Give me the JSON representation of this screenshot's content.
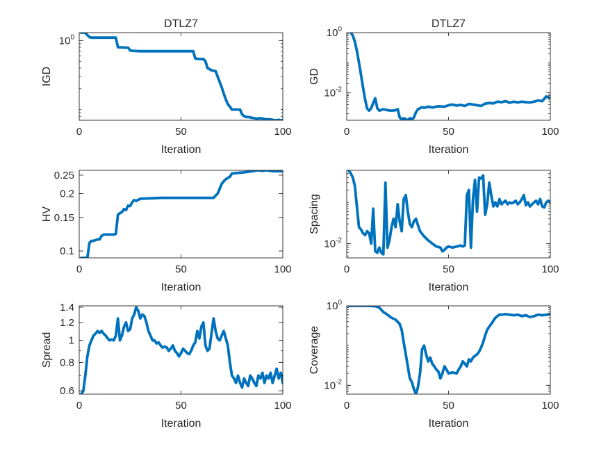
{
  "figure": {
    "line_color": "#0072bd",
    "axis_color": "#262626"
  },
  "chart_data": [
    {
      "id": "igd",
      "type": "line",
      "title": "DTLZ7",
      "xlabel": "Iteration",
      "ylabel": "IGD",
      "xlim": [
        0,
        100
      ],
      "ylim": [
        0.07,
        1.3
      ],
      "yscale": "log",
      "grid": false,
      "xticks": [
        {
          "value": 0,
          "label": "0"
        },
        {
          "value": 50,
          "label": "50"
        },
        {
          "value": 100,
          "label": "100"
        }
      ],
      "yticks": [
        {
          "value": 1,
          "base": "10",
          "exp": "0"
        }
      ],
      "series": [
        {
          "x": [
            1,
            3,
            4,
            5,
            6,
            18,
            19,
            23,
            24,
            25,
            26,
            30,
            40,
            50,
            56,
            57,
            59,
            61,
            62,
            63,
            65,
            67,
            68,
            69,
            70,
            71,
            72,
            73,
            74,
            75,
            76,
            77,
            78,
            79,
            80,
            81,
            82,
            83,
            84,
            85,
            86,
            87,
            88,
            89,
            90,
            91,
            92,
            93,
            94,
            95,
            96,
            97,
            98,
            99,
            100
          ],
          "y": [
            1.3,
            1.3,
            1.2,
            1.12,
            1.1,
            1.1,
            0.8,
            0.79,
            0.79,
            0.72,
            0.71,
            0.7,
            0.7,
            0.7,
            0.7,
            0.55,
            0.54,
            0.54,
            0.5,
            0.4,
            0.37,
            0.36,
            0.3,
            0.25,
            0.21,
            0.17,
            0.14,
            0.12,
            0.11,
            0.1,
            0.1,
            0.1,
            0.1,
            0.1,
            0.085,
            0.08,
            0.078,
            0.078,
            0.077,
            0.076,
            0.075,
            0.074,
            0.074,
            0.075,
            0.074,
            0.073,
            0.072,
            0.072,
            0.072,
            0.071,
            0.07,
            0.07,
            0.071,
            0.07,
            0.07
          ]
        }
      ]
    },
    {
      "id": "gd",
      "type": "line",
      "title": "DTLZ7",
      "xlabel": "Iteration",
      "ylabel": "GD",
      "xlim": [
        0,
        100
      ],
      "ylim": [
        0.0012,
        1.0
      ],
      "yscale": "log",
      "grid": false,
      "xticks": [
        {
          "value": 0,
          "label": "0"
        },
        {
          "value": 50,
          "label": "50"
        },
        {
          "value": 100,
          "label": "100"
        }
      ],
      "yticks": [
        {
          "value": 1,
          "base": "10",
          "exp": "0"
        },
        {
          "value": 0.01,
          "base": "10",
          "exp": "-2"
        }
      ],
      "series": [
        {
          "x": [
            2,
            3,
            4,
            5,
            6,
            7,
            8,
            9,
            10,
            11,
            12,
            13,
            14,
            15,
            16,
            18,
            20,
            22,
            24,
            25,
            26,
            27,
            28,
            29,
            30,
            31,
            32,
            33,
            34,
            35,
            36,
            37,
            38,
            40,
            42,
            45,
            48,
            50,
            52,
            54,
            56,
            58,
            60,
            62,
            64,
            66,
            68,
            70,
            72,
            74,
            76,
            78,
            80,
            82,
            84,
            86,
            88,
            90,
            92,
            94,
            96,
            98,
            100
          ],
          "y": [
            1.0,
            0.8,
            0.5,
            0.25,
            0.1,
            0.04,
            0.015,
            0.006,
            0.003,
            0.0025,
            0.003,
            0.0045,
            0.0065,
            0.003,
            0.0025,
            0.0028,
            0.0026,
            0.0025,
            0.0026,
            0.0028,
            0.0015,
            0.0013,
            0.0014,
            0.0013,
            0.0012,
            0.0014,
            0.0013,
            0.0015,
            0.0022,
            0.0028,
            0.003,
            0.0033,
            0.0031,
            0.0034,
            0.0032,
            0.0035,
            0.0034,
            0.0038,
            0.004,
            0.0037,
            0.0039,
            0.0036,
            0.0042,
            0.004,
            0.0038,
            0.0036,
            0.0043,
            0.0045,
            0.0044,
            0.005,
            0.0048,
            0.0052,
            0.0046,
            0.005,
            0.0047,
            0.005,
            0.0048,
            0.0047,
            0.005,
            0.0055,
            0.0052,
            0.0075,
            0.0065
          ]
        }
      ]
    },
    {
      "id": "hv",
      "type": "line",
      "title": "",
      "xlabel": "Iteration",
      "ylabel": "HV",
      "xlim": [
        0,
        100
      ],
      "ylim": [
        0.092,
        0.265
      ],
      "yscale": "log",
      "grid": false,
      "xticks": [
        {
          "value": 0,
          "label": "0"
        },
        {
          "value": 50,
          "label": "50"
        },
        {
          "value": 100,
          "label": "100"
        }
      ],
      "yticks": [
        {
          "value": 0.1,
          "label": "0.1"
        },
        {
          "value": 0.15,
          "label": "0.15"
        },
        {
          "value": 0.2,
          "label": "0.2"
        },
        {
          "value": 0.25,
          "label": "0.25"
        }
      ],
      "series": [
        {
          "x": [
            1,
            4,
            5,
            6,
            7,
            9,
            10,
            11,
            12,
            17,
            18,
            19,
            20,
            21,
            22,
            23,
            24,
            25,
            26,
            27,
            28,
            30,
            35,
            40,
            50,
            60,
            66,
            67,
            68,
            69,
            70,
            71,
            72,
            74,
            75,
            80,
            85,
            88,
            90,
            92,
            95,
            97,
            99,
            100
          ],
          "y": [
            0.092,
            0.092,
            0.11,
            0.113,
            0.113,
            0.115,
            0.115,
            0.12,
            0.122,
            0.122,
            0.123,
            0.155,
            0.158,
            0.16,
            0.166,
            0.164,
            0.173,
            0.172,
            0.18,
            0.185,
            0.183,
            0.188,
            0.189,
            0.19,
            0.19,
            0.19,
            0.19,
            0.195,
            0.2,
            0.212,
            0.225,
            0.232,
            0.238,
            0.245,
            0.255,
            0.258,
            0.262,
            0.265,
            0.263,
            0.265,
            0.262,
            0.262,
            0.262,
            0.263
          ]
        }
      ]
    },
    {
      "id": "spacing",
      "type": "line",
      "title": "",
      "xlabel": "Iteration",
      "ylabel": "Spacing",
      "xlim": [
        0,
        100
      ],
      "ylim": [
        0.0045,
        0.6
      ],
      "yscale": "log",
      "grid": false,
      "xticks": [
        {
          "value": 0,
          "label": "0"
        },
        {
          "value": 50,
          "label": "50"
        },
        {
          "value": 100,
          "label": "100"
        }
      ],
      "yticks": [
        {
          "value": 0.01,
          "base": "10",
          "exp": "-2"
        }
      ],
      "series": [
        {
          "x": [
            1,
            2,
            3,
            4,
            5,
            6,
            7,
            8,
            9,
            10,
            11,
            12,
            13,
            14,
            15,
            16,
            17,
            18,
            19,
            20,
            21,
            22,
            23,
            24,
            25,
            26,
            27,
            28,
            29,
            30,
            31,
            32,
            33,
            34,
            35,
            36,
            38,
            40,
            42,
            44,
            46,
            47,
            48,
            49,
            50,
            52,
            54,
            56,
            57,
            58,
            59,
            60,
            61,
            62,
            63,
            64,
            65,
            66,
            67,
            68,
            69,
            70,
            71,
            72,
            73,
            74,
            75,
            76,
            77,
            78,
            79,
            80,
            81,
            82,
            83,
            84,
            85,
            86,
            87,
            88,
            89,
            90,
            91,
            92,
            93,
            94,
            95,
            96,
            97,
            98,
            99,
            100
          ],
          "y": [
            0.6,
            0.5,
            0.4,
            0.25,
            0.08,
            0.025,
            0.022,
            0.018,
            0.016,
            0.02,
            0.018,
            0.01,
            0.07,
            0.0065,
            0.006,
            0.008,
            0.006,
            0.0055,
            0.3,
            0.008,
            0.012,
            0.025,
            0.04,
            0.025,
            0.09,
            0.035,
            0.02,
            0.12,
            0.15,
            0.06,
            0.03,
            0.025,
            0.035,
            0.04,
            0.028,
            0.02,
            0.015,
            0.012,
            0.01,
            0.0085,
            0.008,
            0.0065,
            0.007,
            0.008,
            0.0085,
            0.008,
            0.0085,
            0.009,
            0.0085,
            0.009,
            0.15,
            0.2,
            0.008,
            0.12,
            0.35,
            0.06,
            0.4,
            0.38,
            0.45,
            0.05,
            0.09,
            0.3,
            0.15,
            0.08,
            0.1,
            0.08,
            0.12,
            0.09,
            0.1,
            0.11,
            0.09,
            0.1,
            0.095,
            0.1,
            0.11,
            0.09,
            0.1,
            0.12,
            0.15,
            0.085,
            0.1,
            0.08,
            0.09,
            0.1,
            0.11,
            0.09,
            0.12,
            0.08,
            0.075,
            0.1,
            0.11,
            0.1
          ]
        }
      ]
    },
    {
      "id": "spread",
      "type": "line",
      "title": "",
      "xlabel": "Iteration",
      "ylabel": "Spread",
      "xlim": [
        0,
        100
      ],
      "ylim": [
        0.58,
        1.42
      ],
      "yscale": "log",
      "grid": false,
      "xticks": [
        {
          "value": 0,
          "label": "0"
        },
        {
          "value": 50,
          "label": "50"
        },
        {
          "value": 100,
          "label": "100"
        }
      ],
      "yticks": [
        {
          "value": 0.6,
          "label": "0.6"
        },
        {
          "value": 0.8,
          "label": "0.8"
        },
        {
          "value": 1,
          "label": "1"
        },
        {
          "value": 1.2,
          "label": "1.2"
        },
        {
          "value": 1.4,
          "label": "1.4"
        }
      ],
      "series": [
        {
          "x": [
            1,
            2,
            3,
            4,
            5,
            6,
            7,
            8,
            9,
            10,
            11,
            12,
            13,
            14,
            15,
            16,
            17,
            18,
            19,
            20,
            21,
            22,
            23,
            24,
            25,
            26,
            27,
            28,
            29,
            30,
            31,
            32,
            33,
            34,
            35,
            36,
            37,
            38,
            39,
            40,
            41,
            42,
            43,
            44,
            45,
            46,
            47,
            48,
            49,
            50,
            51,
            52,
            53,
            54,
            55,
            56,
            57,
            58,
            59,
            60,
            61,
            62,
            63,
            64,
            65,
            66,
            67,
            68,
            69,
            70,
            71,
            72,
            73,
            74,
            75,
            76,
            77,
            78,
            79,
            80,
            81,
            82,
            83,
            84,
            85,
            86,
            87,
            88,
            89,
            90,
            91,
            92,
            93,
            94,
            95,
            96,
            97,
            98,
            99,
            100
          ],
          "y": [
            0.58,
            0.6,
            0.7,
            0.85,
            0.95,
            1.0,
            1.05,
            1.07,
            1.1,
            1.08,
            1.1,
            1.07,
            1.05,
            1.02,
            1.0,
            1.01,
            1.0,
            1.05,
            1.25,
            1.0,
            1.05,
            1.15,
            1.2,
            1.1,
            1.12,
            1.25,
            1.3,
            1.4,
            1.35,
            1.25,
            1.3,
            1.28,
            1.2,
            1.1,
            1.05,
            1.0,
            1.0,
            0.97,
            0.98,
            0.95,
            0.93,
            0.94,
            0.93,
            0.9,
            0.92,
            0.95,
            0.9,
            0.88,
            0.85,
            0.88,
            0.92,
            0.9,
            0.88,
            0.87,
            0.9,
            0.95,
            0.98,
            1.1,
            1.02,
            1.15,
            1.2,
            0.95,
            0.9,
            0.92,
            1.08,
            1.25,
            1.1,
            1.02,
            1.0,
            1.05,
            1.1,
            1.02,
            0.95,
            0.8,
            0.7,
            0.68,
            0.65,
            0.7,
            0.65,
            0.62,
            0.68,
            0.65,
            0.63,
            0.7,
            0.68,
            0.65,
            0.63,
            0.7,
            0.68,
            0.72,
            0.65,
            0.7,
            0.68,
            0.72,
            0.65,
            0.7,
            0.75,
            0.68,
            0.72,
            0.65
          ]
        }
      ]
    },
    {
      "id": "coverage",
      "type": "line",
      "title": "",
      "xlabel": "Iteration",
      "ylabel": "Coverage",
      "xlim": [
        0,
        100
      ],
      "ylim": [
        0.006,
        1.0
      ],
      "yscale": "log",
      "grid": false,
      "xticks": [
        {
          "value": 0,
          "label": "0"
        },
        {
          "value": 50,
          "label": "50"
        },
        {
          "value": 100,
          "label": "100"
        }
      ],
      "yticks": [
        {
          "value": 1,
          "base": "10",
          "exp": "0"
        },
        {
          "value": 0.01,
          "base": "10",
          "exp": "-2"
        }
      ],
      "series": [
        {
          "x": [
            1,
            5,
            10,
            14,
            16,
            18,
            20,
            22,
            24,
            26,
            27,
            28,
            29,
            30,
            31,
            32,
            33,
            34,
            35,
            36,
            37,
            38,
            39,
            40,
            41,
            42,
            43,
            44,
            45,
            46,
            47,
            48,
            49,
            50,
            52,
            54,
            55,
            56,
            57,
            58,
            59,
            60,
            61,
            62,
            63,
            64,
            65,
            66,
            67,
            68,
            69,
            70,
            71,
            72,
            73,
            74,
            75,
            76,
            78,
            80,
            82,
            84,
            86,
            88,
            90,
            92,
            94,
            96,
            98,
            100
          ],
          "y": [
            1.0,
            1.0,
            1.0,
            0.98,
            0.9,
            0.7,
            0.6,
            0.5,
            0.45,
            0.35,
            0.25,
            0.12,
            0.06,
            0.03,
            0.015,
            0.012,
            0.008,
            0.006,
            0.009,
            0.02,
            0.08,
            0.1,
            0.06,
            0.04,
            0.05,
            0.035,
            0.03,
            0.025,
            0.022,
            0.015,
            0.02,
            0.03,
            0.025,
            0.02,
            0.021,
            0.02,
            0.025,
            0.03,
            0.04,
            0.035,
            0.03,
            0.045,
            0.04,
            0.05,
            0.055,
            0.06,
            0.07,
            0.09,
            0.12,
            0.18,
            0.25,
            0.3,
            0.35,
            0.42,
            0.5,
            0.55,
            0.6,
            0.6,
            0.62,
            0.6,
            0.58,
            0.6,
            0.55,
            0.58,
            0.52,
            0.55,
            0.6,
            0.58,
            0.6,
            0.62
          ]
        }
      ]
    }
  ]
}
